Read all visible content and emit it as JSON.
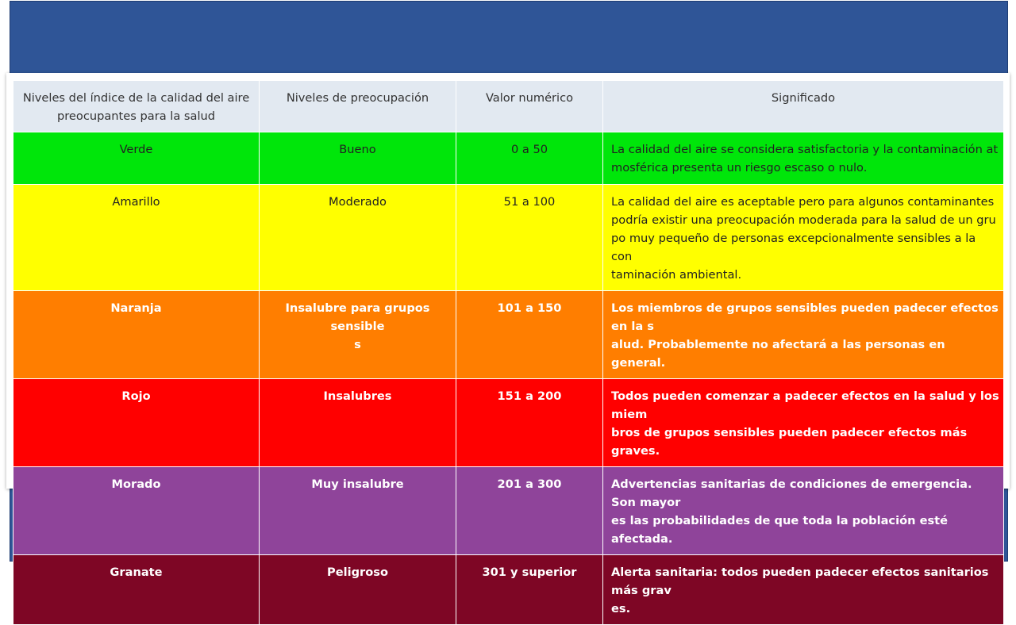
{
  "headers": [
    "Niveles del índice de la calidad del aire preocupantes para la salud",
    "Niveles de preocupación",
    "Valor numérico",
    "Significado"
  ],
  "rows": [
    {
      "color": "Verde",
      "level": "Bueno",
      "range": "0 a 50",
      "meaning": "La calidad del aire se considera satisfactoria y la contaminación at\nmosférica presenta un riesgo escaso o nulo.",
      "bg": "#00e60a",
      "text": "dark"
    },
    {
      "color": "Amarillo",
      "level": "Moderado",
      "range": "51 a 100",
      "meaning": "La calidad del aire es aceptable pero para algunos contaminantes\npodría existir una preocupación moderada para la salud de un gru\npo muy pequeño de personas excepcionalmente sensibles a la con\ntaminación ambiental.",
      "bg": "#ffff00",
      "text": "dark"
    },
    {
      "color": "Naranja",
      "level": "Insalubre para grupos sensible\ns",
      "range": "101 a 150",
      "meaning": "Los miembros de grupos sensibles pueden padecer efectos en la s\nalud. Probablemente no afectará a las personas en general.",
      "bg": "#ff7e00",
      "text": "light"
    },
    {
      "color": "Rojo",
      "level": "Insalubres",
      "range": "151 a 200",
      "meaning": "Todos pueden comenzar a padecer efectos en la salud y los miem\nbros de grupos sensibles pueden padecer efectos más graves.",
      "bg": "#ff0000",
      "text": "light"
    },
    {
      "color": "Morado",
      "level": "Muy insalubre",
      "range": "201 a 300",
      "meaning": "Advertencias sanitarias de condiciones de emergencia. Son mayor\nes las probabilidades de que toda la población esté afectada.",
      "bg": "#8f449a",
      "text": "light"
    },
    {
      "color": "Granate",
      "level": "Peligroso",
      "range": "301 y superior",
      "meaning": "Alerta sanitaria: todos pueden padecer efectos sanitarios más grav\nes.",
      "bg": "#7e0625",
      "text": "light"
    }
  ]
}
